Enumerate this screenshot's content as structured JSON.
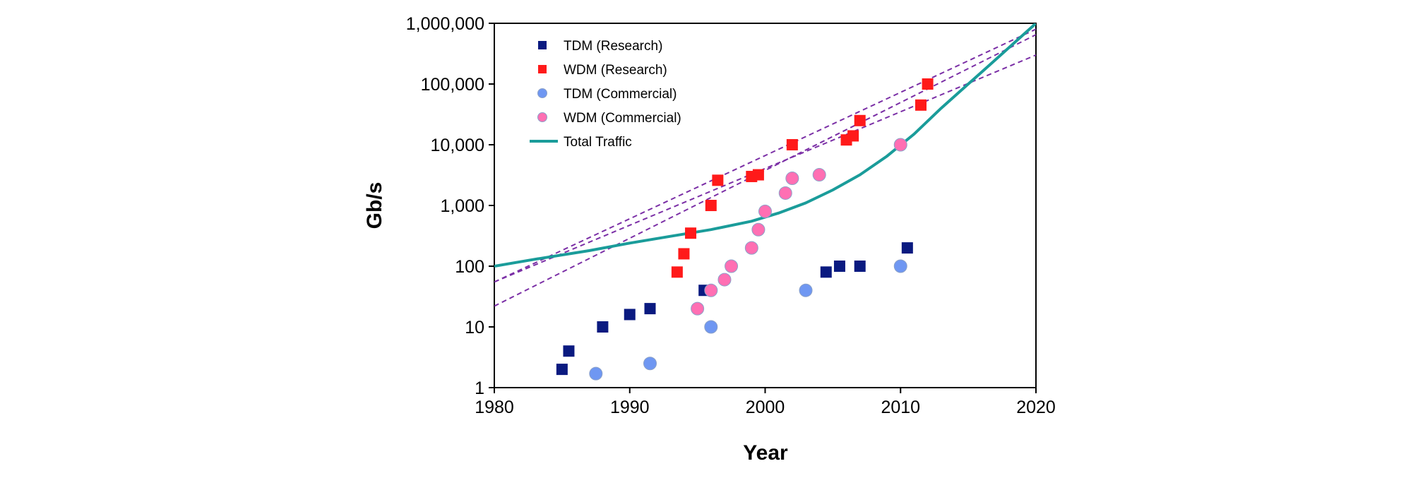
{
  "chart_data": {
    "type": "scatter",
    "title": "",
    "xlabel": "Year",
    "ylabel": "Gb/s",
    "xlim": [
      1980,
      2020
    ],
    "ylim": [
      1,
      1000000
    ],
    "yscale": "log",
    "grid": false,
    "legend_position": "top-left",
    "x_ticks": [
      "1980",
      "1990",
      "2000",
      "2010",
      "2020"
    ],
    "y_ticks": [
      "1",
      "10",
      "100",
      "1,000",
      "10,000",
      "100,000",
      "1,000,000"
    ],
    "colors": {
      "tdm_research": "#0a1a80",
      "wdm_research": "#ff1a1a",
      "tdm_commercial": "#6f97f2",
      "wdm_commercial": "#ff6fb3",
      "total_traffic": "#1a9c9a",
      "trend": "#7b2fa6"
    },
    "series": [
      {
        "name": "TDM (Research)",
        "marker": "square",
        "points": [
          [
            1985,
            2
          ],
          [
            1985.5,
            4
          ],
          [
            1988,
            10
          ],
          [
            1990,
            16
          ],
          [
            1991.5,
            20
          ],
          [
            1995.5,
            40
          ],
          [
            2004.5,
            80
          ],
          [
            2005.5,
            100
          ],
          [
            2007,
            100
          ],
          [
            2010.5,
            200
          ]
        ]
      },
      {
        "name": "WDM (Research)",
        "marker": "square",
        "points": [
          [
            1993.5,
            80
          ],
          [
            1994,
            160
          ],
          [
            1994.5,
            350
          ],
          [
            1996,
            1000
          ],
          [
            1996.5,
            2600
          ],
          [
            1999,
            3000
          ],
          [
            1999.5,
            3200
          ],
          [
            2002,
            10000
          ],
          [
            2006,
            12000
          ],
          [
            2006.5,
            14000
          ],
          [
            2007,
            25000
          ],
          [
            2011.5,
            45000
          ],
          [
            2012,
            100000
          ]
        ]
      },
      {
        "name": "TDM (Commercial)",
        "marker": "circle",
        "points": [
          [
            1987.5,
            1.7
          ],
          [
            1991.5,
            2.5
          ],
          [
            1996,
            10
          ],
          [
            2003,
            40
          ],
          [
            2010,
            100
          ]
        ]
      },
      {
        "name": "WDM (Commercial)",
        "marker": "circle",
        "points": [
          [
            1995,
            20
          ],
          [
            1996,
            40
          ],
          [
            1997,
            60
          ],
          [
            1997.5,
            100
          ],
          [
            1999,
            200
          ],
          [
            1999.5,
            400
          ],
          [
            2000,
            800
          ],
          [
            2001.5,
            1600
          ],
          [
            2002,
            2800
          ],
          [
            2004,
            3200
          ],
          [
            2010,
            10000
          ]
        ]
      },
      {
        "name": "Total Traffic",
        "type": "line",
        "points": [
          [
            1980,
            100
          ],
          [
            1983,
            130
          ],
          [
            1987,
            180
          ],
          [
            1990,
            240
          ],
          [
            1993,
            310
          ],
          [
            1996,
            400
          ],
          [
            1999,
            550
          ],
          [
            2001,
            750
          ],
          [
            2003,
            1100
          ],
          [
            2005,
            1800
          ],
          [
            2007,
            3200
          ],
          [
            2009,
            6500
          ],
          [
            2011,
            15000
          ],
          [
            2013,
            40000
          ],
          [
            2015,
            100000
          ],
          [
            2017,
            250000
          ],
          [
            2020,
            1000000
          ]
        ]
      }
    ],
    "trend_lines": [
      {
        "name": "trend-upper",
        "points": [
          [
            1980,
            55
          ],
          [
            2020,
            800000
          ]
        ]
      },
      {
        "name": "trend-middle",
        "points": [
          [
            1980,
            22
          ],
          [
            2020,
            650000
          ]
        ]
      },
      {
        "name": "trend-lower",
        "points": [
          [
            1980,
            55
          ],
          [
            2020,
            300000
          ]
        ]
      }
    ]
  }
}
